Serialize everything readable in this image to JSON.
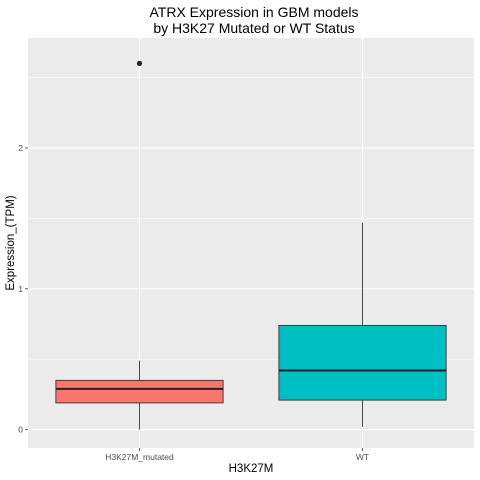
{
  "chart_data": {
    "type": "boxplot",
    "title_line1": "ATRX Expression in GBM models",
    "title_line2": "by H3K27 Mutated or WT Status",
    "xlabel": "H3K27M",
    "ylabel": "Expression_(TPM)",
    "categories": [
      "H3K27M_mutated",
      "WT"
    ],
    "y_ticks": [
      0,
      1,
      2
    ],
    "y_tick_labels": [
      "0",
      "1",
      "2"
    ],
    "ylim": [
      -0.13,
      2.78
    ],
    "grid": true,
    "legend": "none",
    "boxes": [
      {
        "category": "H3K27M_mutated",
        "whisker_low": 0.0,
        "q1": 0.19,
        "median": 0.29,
        "q3": 0.35,
        "whisker_high": 0.49,
        "outliers": [
          2.6
        ],
        "color": "#F8766D"
      },
      {
        "category": "WT",
        "whisker_low": 0.02,
        "q1": 0.21,
        "median": 0.42,
        "q3": 0.74,
        "whisker_high": 1.47,
        "outliers": [],
        "color": "#00BFC4"
      }
    ],
    "colors": {
      "panel": "#EBEBEB",
      "grid_major": "#FFFFFF",
      "outline": "#333333"
    }
  }
}
